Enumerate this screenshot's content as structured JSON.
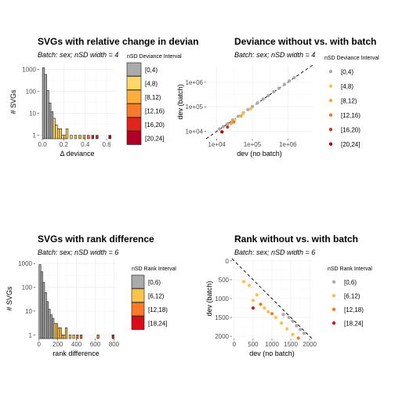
{
  "chart_data": [
    {
      "type": "bar",
      "title": "SVGs with relative change in devian",
      "subtitle": "Batch: sex; nSD width = 4",
      "xlabel": "Δ deviance",
      "ylabel": "# SVGs",
      "xlim": [
        -0.03,
        0.68
      ],
      "xticks": [
        0.0,
        0.2,
        0.4,
        0.6
      ],
      "xtick_labels": [
        "0.0",
        "0.2",
        "0.4",
        "0.6"
      ],
      "yscale": "log10",
      "ylim": [
        0.7,
        1600
      ],
      "yticks": [
        1,
        10,
        100,
        1000
      ],
      "ytick_labels": [
        "1",
        "10",
        "100",
        "1000"
      ],
      "bin_width": 0.02,
      "bins": [
        {
          "x": 0.0,
          "count": 1200,
          "class": 0
        },
        {
          "x": 0.02,
          "count": 600,
          "class": 0
        },
        {
          "x": 0.04,
          "count": 110,
          "class": 0
        },
        {
          "x": 0.06,
          "count": 30,
          "class": 0
        },
        {
          "x": 0.08,
          "count": 12,
          "class": 0
        },
        {
          "x": 0.1,
          "count": 6,
          "class": 1
        },
        {
          "x": 0.12,
          "count": 3,
          "class": 1
        },
        {
          "x": 0.14,
          "count": 2,
          "class": 1
        },
        {
          "x": 0.16,
          "count": 2,
          "class": 1
        },
        {
          "x": 0.18,
          "count": 1,
          "class": 1
        },
        {
          "x": 0.2,
          "count": 1,
          "class": 1
        },
        {
          "x": 0.22,
          "count": 2,
          "class": 1
        },
        {
          "x": 0.26,
          "count": 1,
          "class": 1
        },
        {
          "x": 0.3,
          "count": 1,
          "class": 1
        },
        {
          "x": 0.34,
          "count": 1,
          "class": 2
        },
        {
          "x": 0.38,
          "count": 1,
          "class": 2
        },
        {
          "x": 0.42,
          "count": 1,
          "class": 3
        },
        {
          "x": 0.46,
          "count": 1,
          "class": 4
        },
        {
          "x": 0.5,
          "count": 1,
          "class": 4
        },
        {
          "x": 0.62,
          "count": 1,
          "class": 5
        }
      ],
      "legend": {
        "title": "nSD Deviance Interval",
        "entries": [
          "[0,4)",
          "[4,8)",
          "[8,12)",
          "[12,16)",
          "[16,20)",
          "[20,24]"
        ],
        "colors": [
          "#aaaaaa",
          "#ffd766",
          "#fdae3c",
          "#f77a2a",
          "#e2241c",
          "#b10026"
        ],
        "placement": "right"
      }
    },
    {
      "type": "scatter",
      "title": "Deviance without vs. with batch",
      "subtitle": "Batch: sex; nSD width = 4",
      "xlabel": "dev (no batch)",
      "ylabel": "dev (batch)",
      "xscale": "log10",
      "yscale": "log10",
      "xlim": [
        5000,
        5000000
      ],
      "ylim": [
        5000,
        5000000
      ],
      "xticks": [
        10000,
        100000,
        1000000
      ],
      "xtick_labels": [
        "1e+04",
        "1e+05",
        "1e+06"
      ],
      "yticks": [
        10000,
        100000,
        1000000
      ],
      "ytick_labels": [
        "1e+04",
        "1e+05",
        "1e+06"
      ],
      "reference_line": "y = x (dashed)",
      "points": [
        {
          "x": 12000,
          "y": 12500,
          "class": 0
        },
        {
          "x": 15000,
          "y": 15500,
          "class": 0
        },
        {
          "x": 20000,
          "y": 20500,
          "class": 0
        },
        {
          "x": 28000,
          "y": 29000,
          "class": 0
        },
        {
          "x": 40000,
          "y": 41000,
          "class": 0
        },
        {
          "x": 55000,
          "y": 56000,
          "class": 0
        },
        {
          "x": 75000,
          "y": 77000,
          "class": 0
        },
        {
          "x": 100000,
          "y": 102000,
          "class": 0
        },
        {
          "x": 140000,
          "y": 143000,
          "class": 0
        },
        {
          "x": 200000,
          "y": 204000,
          "class": 0
        },
        {
          "x": 280000,
          "y": 285000,
          "class": 0
        },
        {
          "x": 400000,
          "y": 408000,
          "class": 0
        },
        {
          "x": 560000,
          "y": 570000,
          "class": 0
        },
        {
          "x": 800000,
          "y": 815000,
          "class": 0
        },
        {
          "x": 1100000,
          "y": 1120000,
          "class": 0
        },
        {
          "x": 1500000,
          "y": 1530000,
          "class": 0
        },
        {
          "x": 55000,
          "y": 52000,
          "class": 1
        },
        {
          "x": 32000,
          "y": 29000,
          "class": 1
        },
        {
          "x": 90000,
          "y": 82000,
          "class": 1
        },
        {
          "x": 48000,
          "y": 42000,
          "class": 2
        },
        {
          "x": 25000,
          "y": 21000,
          "class": 2
        },
        {
          "x": 30000,
          "y": 24000,
          "class": 3
        },
        {
          "x": 20000,
          "y": 15000,
          "class": 4
        },
        {
          "x": 14000,
          "y": 9500,
          "class": 5
        }
      ],
      "legend": {
        "title": "nSD Deviance Interval",
        "entries": [
          "[0,4)",
          "[4,8)",
          "[8,12)",
          "[12,16)",
          "[16,20)",
          "[20,24]"
        ],
        "colors": [
          "#aaaaaa",
          "#ffc34d",
          "#fca43a",
          "#f47b29",
          "#de2d1a",
          "#ad0000"
        ],
        "placement": "right"
      }
    },
    {
      "type": "bar",
      "title": "SVGs with rank difference",
      "subtitle": "Batch: sex; nSD width = 6",
      "xlabel": "rank difference",
      "ylabel": "# SVGs",
      "xlim": [
        -40,
        830
      ],
      "xticks": [
        0,
        200,
        400,
        600,
        800
      ],
      "xtick_labels": [
        "0",
        "200",
        "400",
        "600",
        "800"
      ],
      "yscale": "log10",
      "ylim": [
        0.7,
        1600
      ],
      "yticks": [
        1,
        10,
        100,
        1000
      ],
      "ytick_labels": [
        "1",
        "10",
        "100",
        "1000"
      ],
      "bin_width": 20,
      "bins": [
        {
          "x": 0,
          "count": 900,
          "class": 0
        },
        {
          "x": 20,
          "count": 450,
          "class": 0
        },
        {
          "x": 40,
          "count": 160,
          "class": 0
        },
        {
          "x": 60,
          "count": 60,
          "class": 0
        },
        {
          "x": 80,
          "count": 25,
          "class": 0
        },
        {
          "x": 100,
          "count": 12,
          "class": 0
        },
        {
          "x": 120,
          "count": 7,
          "class": 0
        },
        {
          "x": 140,
          "count": 5,
          "class": 0
        },
        {
          "x": 160,
          "count": 3,
          "class": 1
        },
        {
          "x": 180,
          "count": 3,
          "class": 1
        },
        {
          "x": 200,
          "count": 2,
          "class": 1
        },
        {
          "x": 220,
          "count": 2,
          "class": 1
        },
        {
          "x": 240,
          "count": 1,
          "class": 1
        },
        {
          "x": 260,
          "count": 1,
          "class": 1
        },
        {
          "x": 280,
          "count": 2,
          "class": 1
        },
        {
          "x": 320,
          "count": 1,
          "class": 1
        },
        {
          "x": 360,
          "count": 1,
          "class": 1
        },
        {
          "x": 400,
          "count": 1,
          "class": 2
        },
        {
          "x": 440,
          "count": 1,
          "class": 2
        },
        {
          "x": 620,
          "count": 1,
          "class": 2
        },
        {
          "x": 780,
          "count": 1,
          "class": 3
        }
      ],
      "legend": {
        "title": "nSD Rank Interval",
        "entries": [
          "[0,6)",
          "[6,12)",
          "[12,18)",
          "[18,24]"
        ],
        "colors": [
          "#aaaaaa",
          "#ffc24a",
          "#fb7a29",
          "#dd0a1a"
        ],
        "placement": "right"
      }
    },
    {
      "type": "scatter",
      "title": "Rank without vs. with batch",
      "subtitle": "Batch: sex; nSD width = 6",
      "xlabel": "dev (no batch)",
      "ylabel": "dev (batch)",
      "xlim": [
        -60,
        2060
      ],
      "ylim": [
        -60,
        2060
      ],
      "y_reversed": true,
      "xticks": [
        0,
        500,
        1000,
        1500,
        2000
      ],
      "xtick_labels": [
        "0",
        "500",
        "1000",
        "1500",
        "2000"
      ],
      "yticks": [
        0,
        500,
        1000,
        1500,
        2000
      ],
      "ytick_labels": [
        "0",
        "500",
        "1000",
        "1500",
        "2000"
      ],
      "reference_line": "y = x (dashed)",
      "points": [
        {
          "x": 1450,
          "y": 1500,
          "class": 0
        },
        {
          "x": 1550,
          "y": 1600,
          "class": 0
        },
        {
          "x": 1650,
          "y": 1720,
          "class": 0
        },
        {
          "x": 1750,
          "y": 1820,
          "class": 0
        },
        {
          "x": 1850,
          "y": 1920,
          "class": 0
        },
        {
          "x": 1300,
          "y": 1420,
          "class": 0
        },
        {
          "x": 250,
          "y": 550,
          "class": 1
        },
        {
          "x": 400,
          "y": 650,
          "class": 1
        },
        {
          "x": 600,
          "y": 900,
          "class": 1
        },
        {
          "x": 500,
          "y": 1050,
          "class": 1
        },
        {
          "x": 800,
          "y": 1250,
          "class": 1
        },
        {
          "x": 900,
          "y": 1350,
          "class": 1
        },
        {
          "x": 1100,
          "y": 1500,
          "class": 1
        },
        {
          "x": 1250,
          "y": 1650,
          "class": 1
        },
        {
          "x": 1400,
          "y": 1800,
          "class": 1
        },
        {
          "x": 1550,
          "y": 1950,
          "class": 1
        },
        {
          "x": 700,
          "y": 1150,
          "class": 2
        },
        {
          "x": 1000,
          "y": 1400,
          "class": 2
        },
        {
          "x": 1700,
          "y": 2050,
          "class": 2
        },
        {
          "x": 500,
          "y": 1250,
          "class": 3
        }
      ],
      "legend": {
        "title": "nSD Rank Interval",
        "entries": [
          "[0,6)",
          "[6,12)",
          "[12,18)",
          "[18,24]"
        ],
        "colors": [
          "#aaaaaa",
          "#ffbf47",
          "#f47a29",
          "#cc1c1c"
        ],
        "placement": "right"
      }
    }
  ]
}
